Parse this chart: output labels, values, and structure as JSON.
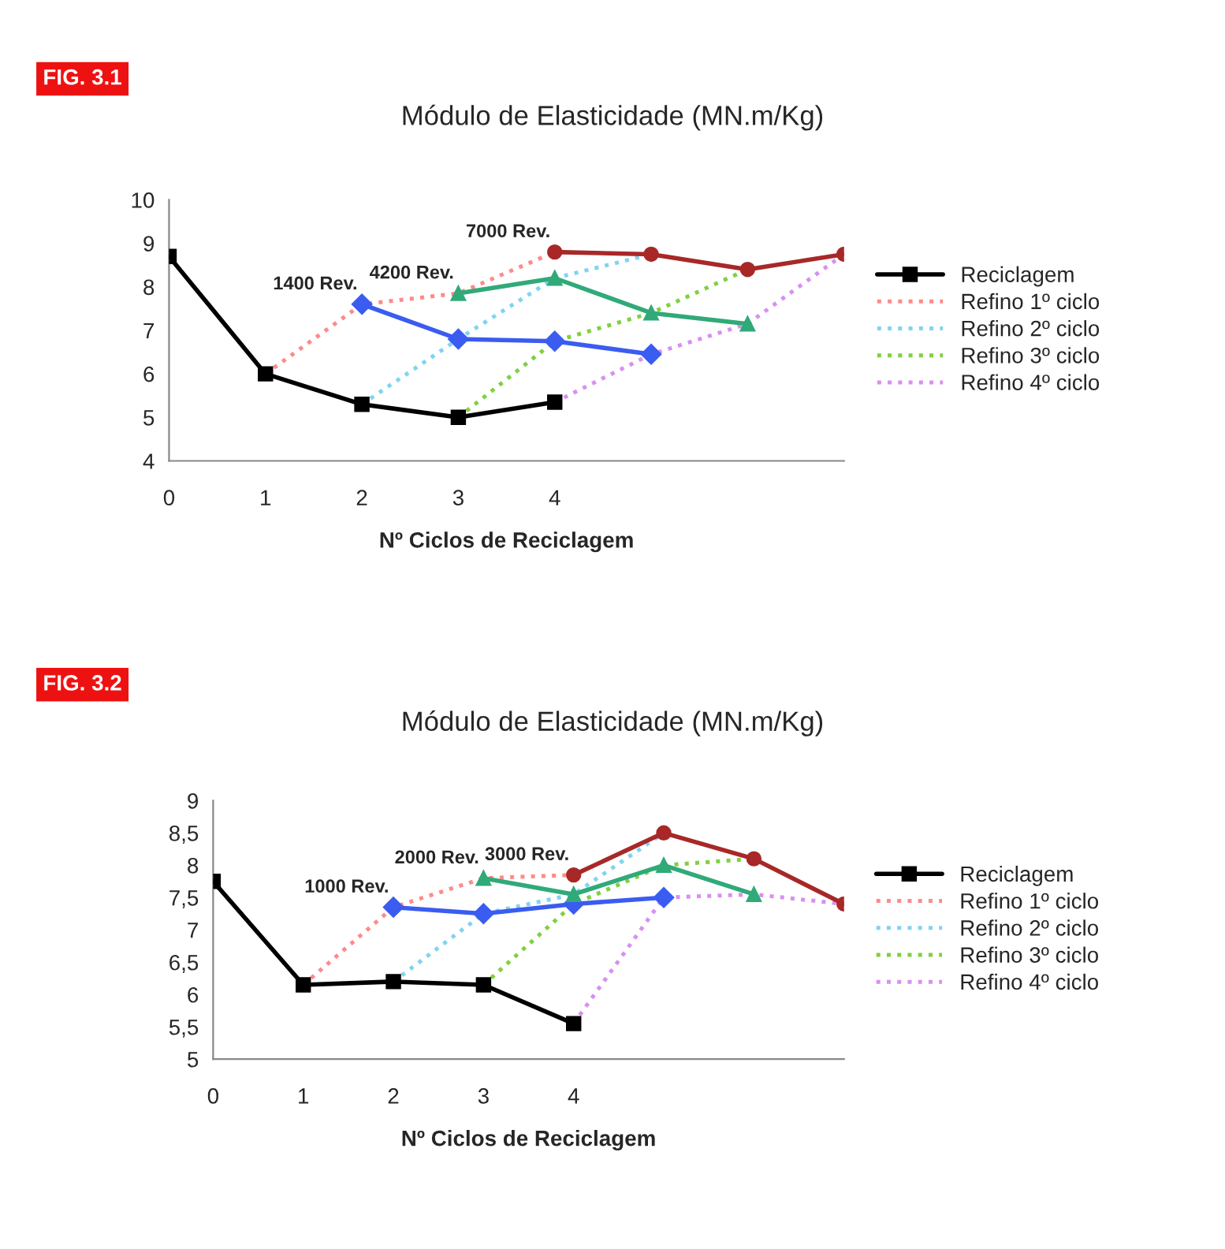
{
  "chart_data": [
    {
      "type": "line",
      "title": "Módulo de Elasticidade (MN.m/Kg)",
      "xlabel": "Nº Ciclos de Reciclagem",
      "categories": [
        "0",
        "1",
        "2",
        "3",
        "4",
        null,
        null,
        null
      ],
      "ylim": [
        4,
        10
      ],
      "yticks": [
        4,
        5,
        6,
        7,
        8,
        9,
        10
      ],
      "legend": "right",
      "annotations": [
        "FIG. 3.1",
        {
          "text": "1400 Rev.",
          "x": "2",
          "y": 7.6
        },
        {
          "text": "4200 Rev.",
          "x": "3",
          "y": 7.85
        },
        {
          "text": "7000 Rev.",
          "x": "4",
          "y": 8.8
        }
      ],
      "series": [
        {
          "name": "Reciclagem",
          "color": "#000000",
          "marker": "square",
          "line_style": "solid",
          "values": [
            8.7,
            6.0,
            5.3,
            5.0,
            5.35,
            null,
            null,
            null
          ]
        },
        {
          "name": "Refino 1º ciclo",
          "color": "#ff8a8a",
          "marker": "none",
          "line_style": "dotted",
          "values": [
            null,
            6.0,
            7.6,
            7.85,
            8.8,
            null,
            null,
            null
          ]
        },
        {
          "name": "Refino 2º ciclo",
          "color": "#80d4f0",
          "marker": "none",
          "line_style": "dotted",
          "values": [
            null,
            null,
            5.3,
            6.8,
            8.2,
            8.75,
            null,
            null
          ]
        },
        {
          "name": "Refino 3º ciclo",
          "color": "#80d040",
          "marker": "none",
          "line_style": "dotted",
          "values": [
            null,
            null,
            null,
            5.0,
            6.75,
            7.4,
            8.4,
            null
          ]
        },
        {
          "name": "Refino 4º ciclo",
          "color": "#d890f0",
          "marker": "none",
          "line_style": "dotted",
          "values": [
            null,
            null,
            null,
            null,
            5.35,
            6.45,
            7.15,
            8.75
          ]
        },
        {
          "color": "#3a5cf0",
          "marker": "diamond",
          "line_style": "solid",
          "values": [
            null,
            null,
            7.6,
            6.8,
            6.75,
            6.45,
            null,
            null
          ]
        },
        {
          "color": "#30aa78",
          "marker": "triangle",
          "line_style": "solid",
          "values": [
            null,
            null,
            null,
            7.85,
            8.2,
            7.4,
            7.15,
            null
          ]
        },
        {
          "color": "#a82828",
          "marker": "circle",
          "line_style": "solid",
          "values": [
            null,
            null,
            null,
            null,
            8.8,
            8.75,
            8.4,
            8.75
          ]
        }
      ]
    },
    {
      "type": "line",
      "title": "Módulo de Elasticidade (MN.m/Kg)",
      "xlabel": "Nº Ciclos de Reciclagem",
      "categories": [
        "0",
        "1",
        "2",
        "3",
        "4",
        null,
        null,
        null
      ],
      "ylim": [
        5,
        9
      ],
      "yticks": [
        5,
        {
          "value": 5.5,
          "label": "5,5"
        },
        6,
        {
          "value": 6.5,
          "label": "6,5"
        },
        7,
        {
          "value": 7.5,
          "label": "7,5"
        },
        8,
        {
          "value": 8.5,
          "label": "8,5"
        },
        9
      ],
      "legend": "right",
      "annotations": [
        "FIG. 3.2",
        {
          "text": "1000 Rev.",
          "x": "2",
          "y": 7.35
        },
        {
          "text": "2000 Rev.",
          "x": "3",
          "y": 7.8
        },
        {
          "text": "3000 Rev.",
          "x": "4",
          "y": 7.85
        }
      ],
      "series": [
        {
          "name": "Reciclagem",
          "color": "#000000",
          "marker": "square",
          "line_style": "solid",
          "values": [
            7.75,
            6.15,
            6.2,
            6.15,
            5.55,
            null,
            null,
            null
          ]
        },
        {
          "name": "Refino 1º ciclo",
          "color": "#ff8a8a",
          "marker": "none",
          "line_style": "dotted",
          "values": [
            null,
            6.15,
            7.35,
            7.8,
            7.85,
            null,
            null,
            null
          ]
        },
        {
          "name": "Refino 2º ciclo",
          "color": "#80d4f0",
          "marker": "none",
          "line_style": "dotted",
          "values": [
            null,
            null,
            6.2,
            7.25,
            7.55,
            8.5,
            null,
            null
          ]
        },
        {
          "name": "Refino 3º ciclo",
          "color": "#80d040",
          "marker": "none",
          "line_style": "dotted",
          "values": [
            null,
            null,
            null,
            6.15,
            7.4,
            8.0,
            8.1,
            null
          ]
        },
        {
          "name": "Refino 4º ciclo",
          "color": "#d890f0",
          "marker": "none",
          "line_style": "dotted",
          "values": [
            null,
            null,
            null,
            null,
            5.55,
            7.5,
            7.55,
            7.4
          ]
        },
        {
          "color": "#3a5cf0",
          "marker": "diamond",
          "line_style": "solid",
          "values": [
            null,
            null,
            7.35,
            7.25,
            7.4,
            7.5,
            null,
            null
          ]
        },
        {
          "color": "#30aa78",
          "marker": "triangle",
          "line_style": "solid",
          "values": [
            null,
            null,
            null,
            7.8,
            7.55,
            8.0,
            7.55,
            null
          ]
        },
        {
          "color": "#a82828",
          "marker": "circle",
          "line_style": "solid",
          "values": [
            null,
            null,
            null,
            null,
            7.85,
            8.5,
            8.1,
            7.4
          ]
        }
      ]
    }
  ]
}
